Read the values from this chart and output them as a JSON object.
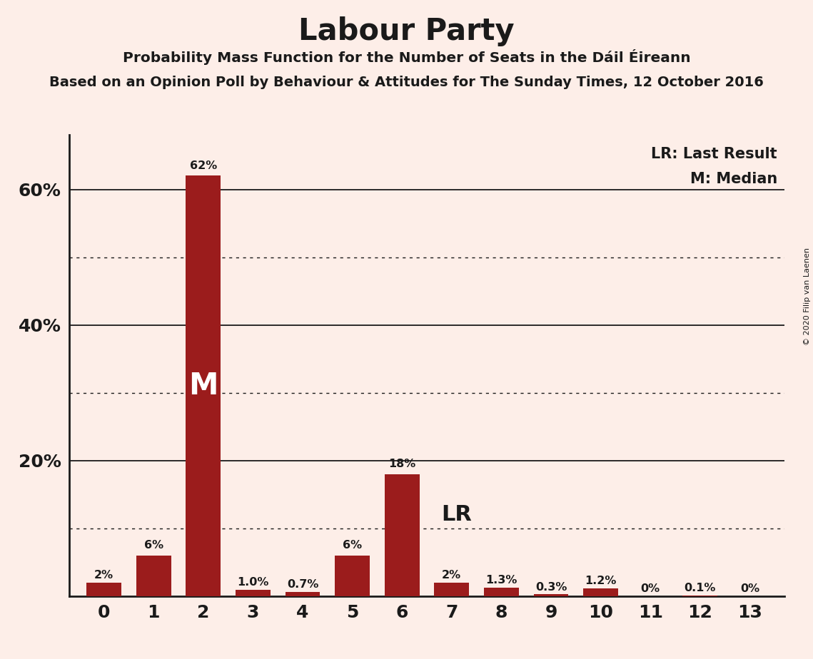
{
  "title": "Labour Party",
  "subtitle": "Probability Mass Function for the Number of Seats in the Dáil Éireann",
  "subtitle2": "Based on an Opinion Poll by Behaviour & Attitudes for The Sunday Times, 12 October 2016",
  "copyright": "© 2020 Filip van Laenen",
  "bar_color": "#9B1C1C",
  "background_color": "#FDEEE8",
  "categories": [
    0,
    1,
    2,
    3,
    4,
    5,
    6,
    7,
    8,
    9,
    10,
    11,
    12,
    13
  ],
  "values": [
    2.0,
    6.0,
    62.0,
    1.0,
    0.7,
    6.0,
    18.0,
    2.0,
    1.3,
    0.3,
    1.2,
    0.0,
    0.1,
    0.0
  ],
  "labels": [
    "2%",
    "6%",
    "62%",
    "1.0%",
    "0.7%",
    "6%",
    "18%",
    "2%",
    "1.3%",
    "0.3%",
    "1.2%",
    "0%",
    "0.1%",
    "0%"
  ],
  "median_bar": 2,
  "lr_bar": 7,
  "ylim": [
    0,
    68
  ],
  "solid_yticks": [
    20,
    40,
    60
  ],
  "dotted_yticks": [
    10,
    30,
    50
  ],
  "legend_lr": "LR: Last Result",
  "legend_m": "M: Median"
}
